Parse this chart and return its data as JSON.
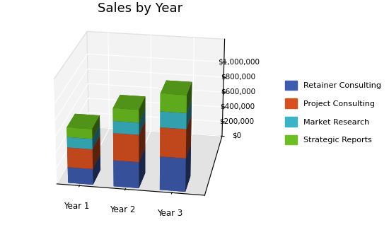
{
  "title": "Sales by Year",
  "categories": [
    "Year 1",
    "Year 2",
    "Year 3"
  ],
  "series": [
    {
      "label": "Retainer Consulting",
      "color": "#3d5cad",
      "values": [
        200000,
        330000,
        420000
      ]
    },
    {
      "label": "Project Consulting",
      "color": "#d94f1e",
      "values": [
        250000,
        340000,
        360000
      ]
    },
    {
      "label": "Market Research",
      "color": "#3ab5c5",
      "values": [
        130000,
        150000,
        195000
      ]
    },
    {
      "label": "Strategic Reports",
      "color": "#6ac020",
      "values": [
        120000,
        155000,
        215000
      ]
    }
  ],
  "yticks": [
    0,
    200000,
    400000,
    600000,
    800000,
    1000000
  ],
  "ytick_labels": [
    "$0",
    "$200,000",
    "$400,000",
    "$600,000",
    "$800,000",
    "$1,000,000"
  ],
  "ylim": [
    0,
    1300000
  ],
  "bar_width": 0.55,
  "bar_depth": 0.4,
  "background_color": "#ffffff",
  "title_fontsize": 13,
  "elev": 22,
  "azim": -80,
  "left_pane_color": "#c8c8c8",
  "bottom_pane_color": "#e0e0e0",
  "right_pane_color": "#e8e8e8"
}
